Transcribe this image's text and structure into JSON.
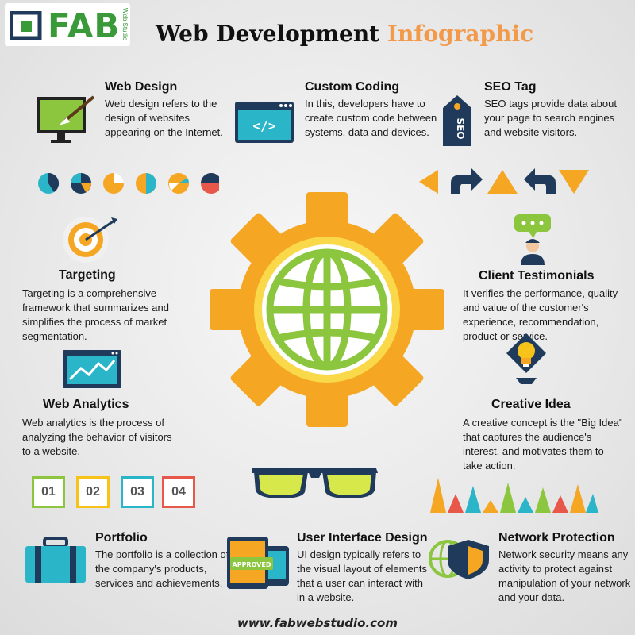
{
  "logo": {
    "brand": "FAB",
    "sub": "Web Studio"
  },
  "title": {
    "part1": "Web Development",
    "part2": "Infographic"
  },
  "sections": {
    "web_design": {
      "heading": "Web Design",
      "text": "Web design refers to the design of websites appearing on the Internet."
    },
    "custom_coding": {
      "heading": "Custom Coding",
      "text": "In this, developers have to create custom code between systems, data and devices."
    },
    "seo_tag": {
      "heading": "SEO Tag",
      "text": "SEO tags provide data about your page to search engines and website visitors."
    },
    "targeting": {
      "heading": "Targeting",
      "text": "Targeting is a comprehensive framework that summarizes and simplifies the process of market segmentation."
    },
    "client_testimonials": {
      "heading": "Client Testimonials",
      "text": "It verifies the performance, quality and value of the customer's experience, recommendation, product or service."
    },
    "web_analytics": {
      "heading": "Web Analytics",
      "text": "Web analytics is the process of analyzing the behavior of visitors to a website."
    },
    "creative_idea": {
      "heading": "Creative Idea",
      "text": "A creative concept is the \"Big Idea\" that captures the audience's interest, and motivates them to take action."
    },
    "portfolio": {
      "heading": "Portfolio",
      "text": "The portfolio is a collection of the company's products, services and achievements."
    },
    "ui_design": {
      "heading": "User Interface Design",
      "text": "UI design typically refers to the visual layout of elements that a user can interact with in a website."
    },
    "network_protection": {
      "heading": "Network Protection",
      "text": "Network security means any activity to protect against manipulation of your network and your data."
    }
  },
  "step_labels": [
    "01",
    "02",
    "03",
    "04"
  ],
  "icon_labels": {
    "code": "</>",
    "seo": "SEO",
    "approved": "APPROVED"
  },
  "website": "www.fabwebstudio.com",
  "colors": {
    "orange": "#f5a623",
    "yellow": "#f7c31a",
    "green": "#8cc63f",
    "navy": "#1f3a5a",
    "teal": "#2bb5c9",
    "accent": "#f2994a"
  }
}
